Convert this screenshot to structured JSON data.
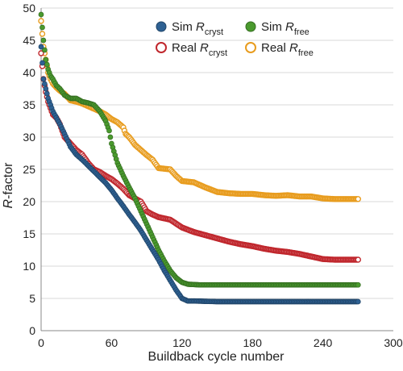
{
  "chart_data": {
    "type": "scatter",
    "xlabel": "Buildback cycle number",
    "ylabel_italic": "R",
    "ylabel_rest": "-factor",
    "xlim": [
      0,
      300
    ],
    "ylim": [
      0,
      50
    ],
    "xticks": [
      0,
      60,
      120,
      180,
      240,
      300
    ],
    "yticks": [
      0,
      5,
      10,
      15,
      20,
      25,
      30,
      35,
      40,
      45,
      50
    ],
    "grid": "horizontal",
    "legend_position": "top-right",
    "series": [
      {
        "name_main": "Sim ",
        "name_italic": "R",
        "name_sub": "cryst",
        "marker": "filled",
        "color": "#2e6193",
        "points": [
          [
            0,
            44
          ],
          [
            2,
            39
          ],
          [
            4,
            37.5
          ],
          [
            6,
            36
          ],
          [
            8,
            35
          ],
          [
            10,
            34
          ],
          [
            13,
            33
          ],
          [
            16,
            32
          ],
          [
            20,
            30.5
          ],
          [
            25,
            28.5
          ],
          [
            30,
            27.3
          ],
          [
            35,
            26.5
          ],
          [
            40,
            25.6
          ],
          [
            45,
            24.7
          ],
          [
            50,
            23.8
          ],
          [
            55,
            22.9
          ],
          [
            60,
            21.8
          ],
          [
            65,
            20.5
          ],
          [
            70,
            19.3
          ],
          [
            75,
            18
          ],
          [
            80,
            16.8
          ],
          [
            85,
            15.5
          ],
          [
            90,
            14
          ],
          [
            95,
            12.5
          ],
          [
            100,
            11
          ],
          [
            105,
            9.3
          ],
          [
            110,
            7.8
          ],
          [
            115,
            6.3
          ],
          [
            120,
            5
          ],
          [
            125,
            4.6
          ],
          [
            130,
            4.6
          ],
          [
            150,
            4.5
          ],
          [
            180,
            4.5
          ],
          [
            210,
            4.5
          ],
          [
            240,
            4.5
          ],
          [
            270,
            4.5
          ]
        ]
      },
      {
        "name_main": "Sim ",
        "name_italic": "R",
        "name_sub": "free",
        "marker": "filled",
        "color": "#4a9a2e",
        "points": [
          [
            0,
            49
          ],
          [
            2,
            45
          ],
          [
            4,
            42
          ],
          [
            6,
            40.5
          ],
          [
            8,
            39.5
          ],
          [
            10,
            39
          ],
          [
            13,
            38
          ],
          [
            16,
            37.5
          ],
          [
            20,
            36.5
          ],
          [
            25,
            36
          ],
          [
            30,
            36
          ],
          [
            35,
            35.5
          ],
          [
            40,
            35.3
          ],
          [
            45,
            35
          ],
          [
            50,
            34
          ],
          [
            55,
            32.5
          ],
          [
            58,
            31
          ],
          [
            60,
            29
          ],
          [
            65,
            26
          ],
          [
            70,
            24
          ],
          [
            75,
            22.2
          ],
          [
            80,
            20.5
          ],
          [
            85,
            18.5
          ],
          [
            90,
            16.5
          ],
          [
            95,
            14.5
          ],
          [
            100,
            12.5
          ],
          [
            105,
            10.8
          ],
          [
            110,
            9.3
          ],
          [
            115,
            8.2
          ],
          [
            120,
            7.5
          ],
          [
            125,
            7.2
          ],
          [
            135,
            7.1
          ],
          [
            150,
            7.1
          ],
          [
            180,
            7.1
          ],
          [
            210,
            7.1
          ],
          [
            240,
            7.1
          ],
          [
            270,
            7.1
          ]
        ]
      },
      {
        "name_main": "Real ",
        "name_italic": "R",
        "name_sub": "cryst",
        "marker": "open",
        "color": "#c0272d",
        "points": [
          [
            0,
            43
          ],
          [
            2,
            39
          ],
          [
            4,
            37
          ],
          [
            6,
            35.5
          ],
          [
            8,
            34.5
          ],
          [
            10,
            33.5
          ],
          [
            13,
            33
          ],
          [
            16,
            32
          ],
          [
            20,
            30
          ],
          [
            25,
            29
          ],
          [
            30,
            28
          ],
          [
            35,
            27.3
          ],
          [
            40,
            26
          ],
          [
            45,
            25
          ],
          [
            50,
            24.6
          ],
          [
            55,
            24
          ],
          [
            60,
            23.5
          ],
          [
            65,
            22.8
          ],
          [
            70,
            22
          ],
          [
            75,
            21
          ],
          [
            80,
            20.5
          ],
          [
            85,
            20
          ],
          [
            90,
            18.5
          ],
          [
            95,
            18
          ],
          [
            100,
            17.6
          ],
          [
            110,
            17.2
          ],
          [
            120,
            16
          ],
          [
            130,
            15.3
          ],
          [
            140,
            14.8
          ],
          [
            150,
            14.3
          ],
          [
            160,
            13.8
          ],
          [
            170,
            13.4
          ],
          [
            180,
            13.1
          ],
          [
            190,
            12.7
          ],
          [
            200,
            12.4
          ],
          [
            210,
            12.2
          ],
          [
            220,
            11.9
          ],
          [
            230,
            11.5
          ],
          [
            240,
            11.1
          ],
          [
            250,
            11
          ],
          [
            260,
            11
          ],
          [
            270,
            11
          ]
        ]
      },
      {
        "name_main": "Real ",
        "name_italic": "R",
        "name_sub": "free",
        "marker": "open",
        "color": "#e89c1e",
        "points": [
          [
            0,
            48
          ],
          [
            2,
            44
          ],
          [
            4,
            42
          ],
          [
            6,
            40
          ],
          [
            8,
            39
          ],
          [
            10,
            38.3
          ],
          [
            13,
            37.7
          ],
          [
            16,
            37.2
          ],
          [
            20,
            36.7
          ],
          [
            25,
            35.7
          ],
          [
            30,
            35.5
          ],
          [
            35,
            35.2
          ],
          [
            40,
            34.8
          ],
          [
            45,
            34.4
          ],
          [
            50,
            34
          ],
          [
            55,
            33.5
          ],
          [
            60,
            32.8
          ],
          [
            65,
            32.3
          ],
          [
            70,
            31.5
          ],
          [
            72,
            30.5
          ],
          [
            75,
            30
          ],
          [
            80,
            28.8
          ],
          [
            85,
            28
          ],
          [
            90,
            27.2
          ],
          [
            95,
            26.5
          ],
          [
            100,
            25.2
          ],
          [
            110,
            25
          ],
          [
            115,
            24
          ],
          [
            120,
            23.2
          ],
          [
            130,
            23
          ],
          [
            140,
            22.2
          ],
          [
            150,
            21.5
          ],
          [
            160,
            21.3
          ],
          [
            170,
            21.2
          ],
          [
            180,
            21.2
          ],
          [
            190,
            21
          ],
          [
            200,
            20.9
          ],
          [
            210,
            21
          ],
          [
            220,
            20.8
          ],
          [
            230,
            20.8
          ],
          [
            240,
            20.5
          ],
          [
            250,
            20.4
          ],
          [
            260,
            20.4
          ],
          [
            270,
            20.4
          ]
        ]
      }
    ]
  }
}
